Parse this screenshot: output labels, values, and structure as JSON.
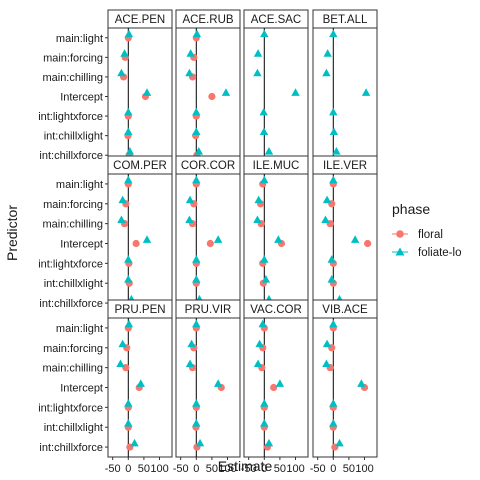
{
  "chart_data": {
    "type": "scatter",
    "subtype": "faceted dot plot",
    "title": "",
    "xlabel": "Estimate",
    "ylabel": "Predictor",
    "xlim": [
      -65,
      140
    ],
    "xticks": [
      -50,
      0,
      50,
      100
    ],
    "xtick_labels": [
      "-50",
      "0",
      "50",
      "100"
    ],
    "vline": 0,
    "predictors": [
      "main:light",
      "main:forcing",
      "main:chilling",
      "Intercept",
      "int:lightxforce",
      "int:chillxlight",
      "int:chillxforce"
    ],
    "facet_grid": {
      "rows": 3,
      "cols": 4
    },
    "legend": {
      "title": "phase",
      "position": "right",
      "entries": [
        {
          "name": "floral",
          "color": "#F8766D",
          "shape": "circle"
        },
        {
          "name": "foliate-lo",
          "color": "#00BFC4",
          "shape": "triangle"
        }
      ]
    },
    "colors": {
      "floral": "#F8766D",
      "foliate-lo": "#00BFC4",
      "vline": "#000000",
      "panel_border": "#333333"
    },
    "facets": [
      {
        "name": "ACE.PEN",
        "floral": [
          0,
          -10,
          -15,
          55,
          0,
          -1,
          3
        ],
        "foliate-lo": [
          2,
          -12,
          -22,
          60,
          0,
          0,
          5
        ]
      },
      {
        "name": "ACE.RUB",
        "floral": [
          0,
          -8,
          -12,
          50,
          0,
          -2,
          2
        ],
        "foliate-lo": [
          2,
          -18,
          -22,
          95,
          0,
          0,
          8
        ]
      },
      {
        "name": "ACE.SAC",
        "floral": [
          null,
          null,
          null,
          null,
          null,
          null,
          null
        ],
        "foliate-lo": [
          0,
          -20,
          -22,
          100,
          -2,
          -1,
          15
        ]
      },
      {
        "name": "BET.ALL",
        "floral": [
          null,
          null,
          null,
          null,
          null,
          null,
          null
        ],
        "foliate-lo": [
          0,
          -18,
          -22,
          105,
          0,
          2,
          10
        ]
      },
      {
        "name": "COM.PER",
        "floral": [
          0,
          -8,
          -12,
          25,
          2,
          3,
          3
        ],
        "foliate-lo": [
          0,
          -18,
          -22,
          60,
          0,
          0,
          10
        ]
      },
      {
        "name": "COR.COR",
        "floral": [
          0,
          -8,
          -12,
          45,
          0,
          0,
          2
        ],
        "foliate-lo": [
          0,
          -20,
          -22,
          70,
          0,
          0,
          10
        ]
      },
      {
        "name": "ILE.MUC",
        "floral": [
          -5,
          -12,
          -10,
          55,
          -5,
          -3,
          12
        ],
        "foliate-lo": [
          0,
          -18,
          -22,
          45,
          0,
          5,
          15
        ]
      },
      {
        "name": "ILE.VER",
        "floral": [
          0,
          -5,
          -10,
          110,
          0,
          0,
          2
        ],
        "foliate-lo": [
          0,
          -20,
          -25,
          70,
          -5,
          -5,
          20
        ]
      },
      {
        "name": "PRU.PEN",
        "floral": [
          0,
          -5,
          -8,
          35,
          0,
          0,
          5
        ],
        "foliate-lo": [
          2,
          -18,
          -25,
          40,
          0,
          0,
          20
        ]
      },
      {
        "name": "PRU.VIR",
        "floral": [
          0,
          -8,
          -12,
          80,
          0,
          -1,
          2
        ],
        "foliate-lo": [
          0,
          -15,
          -20,
          70,
          0,
          0,
          12
        ]
      },
      {
        "name": "VAC.COR",
        "floral": [
          0,
          -5,
          -8,
          30,
          0,
          0,
          10
        ],
        "foliate-lo": [
          -5,
          -15,
          -20,
          50,
          0,
          0,
          15
        ]
      },
      {
        "name": "VIB.ACE",
        "floral": [
          0,
          -5,
          -10,
          100,
          0,
          0,
          5
        ],
        "foliate-lo": [
          0,
          -20,
          -22,
          90,
          0,
          0,
          20
        ]
      }
    ]
  }
}
